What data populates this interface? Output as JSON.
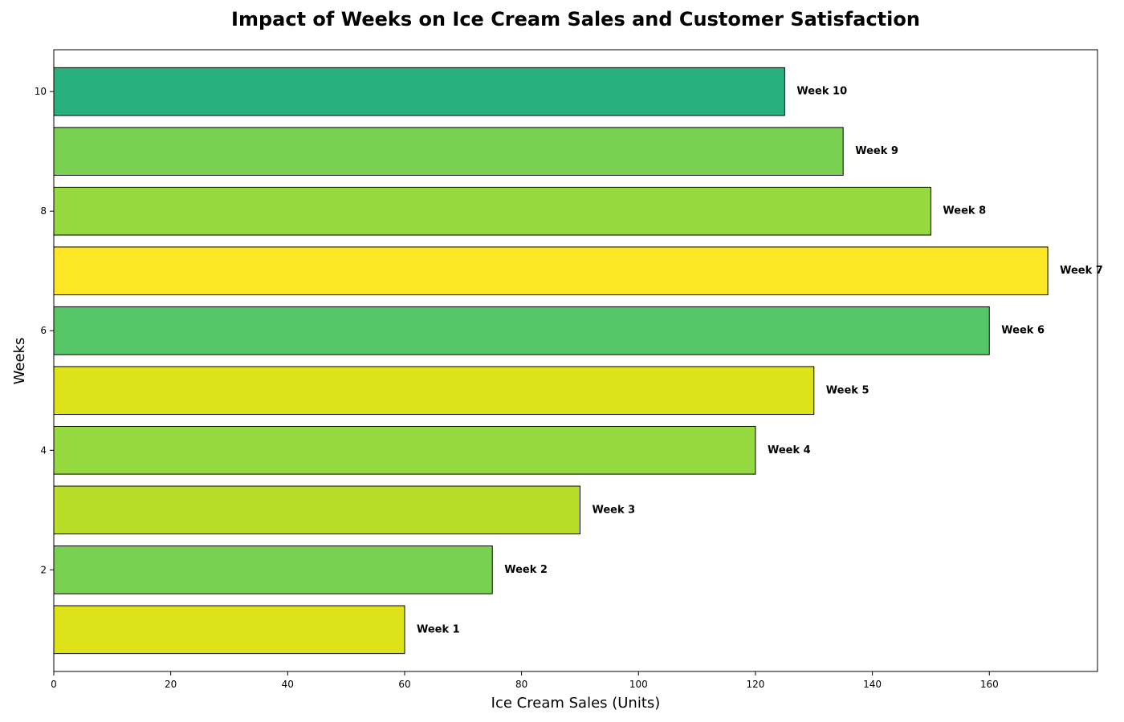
{
  "chart_data": {
    "type": "bar",
    "orientation": "horizontal",
    "title": "Impact of Weeks on Ice Cream Sales and Customer Satisfaction",
    "xlabel": "Ice Cream Sales (Units)",
    "ylabel": "Weeks",
    "xlim": [
      0,
      178.5
    ],
    "ylim": [
      0.3,
      10.7
    ],
    "x_ticks": [
      0,
      20,
      40,
      60,
      80,
      100,
      120,
      140,
      160
    ],
    "y_ticks": [
      2,
      4,
      6,
      8,
      10
    ],
    "grid": false,
    "weeks": [
      1,
      2,
      3,
      4,
      5,
      6,
      7,
      8,
      9,
      10
    ],
    "values": [
      60,
      75,
      90,
      120,
      130,
      160,
      170,
      150,
      135,
      125
    ],
    "labels": [
      "Week 1",
      "Week 2",
      "Week 3",
      "Week 4",
      "Week 5",
      "Week 6",
      "Week 7",
      "Week 8",
      "Week 9",
      "Week 10"
    ],
    "colors": [
      "#dde318",
      "#7ad151",
      "#bade28",
      "#95d840",
      "#dde318",
      "#56c667",
      "#fde725",
      "#95d840",
      "#7ad151",
      "#2ab07f"
    ]
  }
}
